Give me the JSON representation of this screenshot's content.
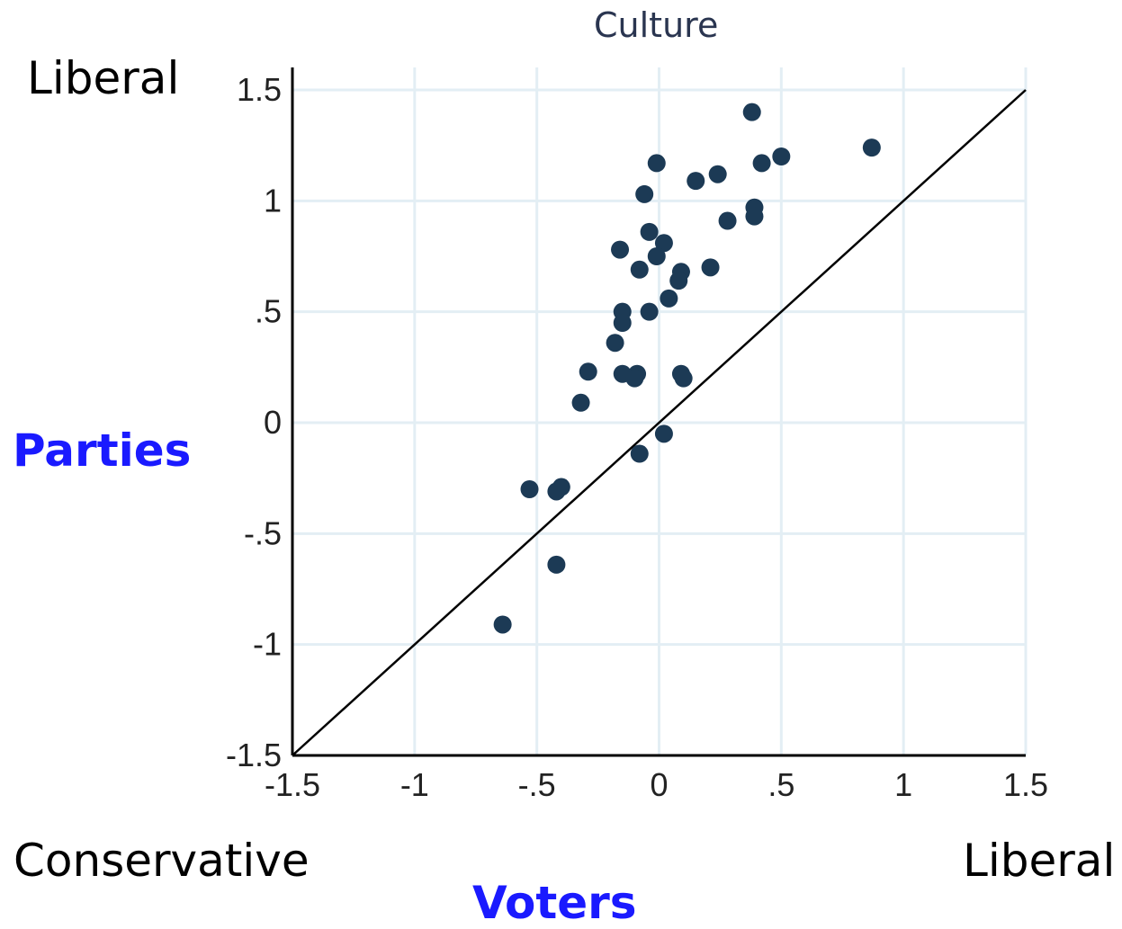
{
  "labels": {
    "y_top": "Liberal",
    "y_axis": "Parties",
    "x_left": "Conservative",
    "x_right": "Liberal",
    "x_axis": "Voters"
  },
  "colors": {
    "accent": "#1a1aff",
    "point": "#1c3a55",
    "grid": "#e3eef4",
    "axis": "#000000"
  },
  "chart_data": {
    "type": "scatter",
    "title": "Culture",
    "xlabel": "Voters",
    "ylabel": "Parties",
    "xlim": [
      -1.5,
      1.5
    ],
    "ylim": [
      -1.5,
      1.5
    ],
    "grid": true,
    "x_ticks": [
      -1.5,
      -1,
      -0.5,
      0,
      0.5,
      1,
      1.5
    ],
    "x_tick_labels": [
      "-1.5",
      "-1",
      "-.5",
      "0",
      ".5",
      "1",
      "1.5"
    ],
    "y_ticks": [
      -1.5,
      -1,
      -0.5,
      0,
      0.5,
      1,
      1.5
    ],
    "y_tick_labels": [
      "-1.5",
      "-1",
      "-.5",
      "0",
      ".5",
      "1",
      "1.5"
    ],
    "reference_line": {
      "from": [
        -1.5,
        -1.5
      ],
      "to": [
        1.5,
        1.5
      ]
    },
    "points": [
      {
        "x": 0.38,
        "y": 1.4
      },
      {
        "x": 0.5,
        "y": 1.2
      },
      {
        "x": 0.42,
        "y": 1.17
      },
      {
        "x": 0.87,
        "y": 1.24
      },
      {
        "x": -0.01,
        "y": 1.17
      },
      {
        "x": 0.24,
        "y": 1.12
      },
      {
        "x": 0.15,
        "y": 1.09
      },
      {
        "x": -0.06,
        "y": 1.03
      },
      {
        "x": 0.39,
        "y": 0.97
      },
      {
        "x": 0.39,
        "y": 0.93
      },
      {
        "x": 0.28,
        "y": 0.91
      },
      {
        "x": -0.04,
        "y": 0.86
      },
      {
        "x": 0.02,
        "y": 0.81
      },
      {
        "x": -0.16,
        "y": 0.78
      },
      {
        "x": -0.01,
        "y": 0.75
      },
      {
        "x": -0.08,
        "y": 0.69
      },
      {
        "x": 0.09,
        "y": 0.68
      },
      {
        "x": 0.21,
        "y": 0.7
      },
      {
        "x": 0.08,
        "y": 0.64
      },
      {
        "x": 0.04,
        "y": 0.56
      },
      {
        "x": -0.15,
        "y": 0.5
      },
      {
        "x": -0.04,
        "y": 0.5
      },
      {
        "x": -0.15,
        "y": 0.45
      },
      {
        "x": -0.18,
        "y": 0.36
      },
      {
        "x": -0.29,
        "y": 0.23
      },
      {
        "x": -0.15,
        "y": 0.22
      },
      {
        "x": -0.09,
        "y": 0.22
      },
      {
        "x": -0.1,
        "y": 0.2
      },
      {
        "x": 0.09,
        "y": 0.22
      },
      {
        "x": 0.1,
        "y": 0.2
      },
      {
        "x": -0.32,
        "y": 0.09
      },
      {
        "x": 0.02,
        "y": -0.05
      },
      {
        "x": -0.08,
        "y": -0.14
      },
      {
        "x": -0.53,
        "y": -0.3
      },
      {
        "x": -0.4,
        "y": -0.29
      },
      {
        "x": -0.42,
        "y": -0.31
      },
      {
        "x": -0.42,
        "y": -0.64
      },
      {
        "x": -0.64,
        "y": -0.91
      }
    ]
  }
}
